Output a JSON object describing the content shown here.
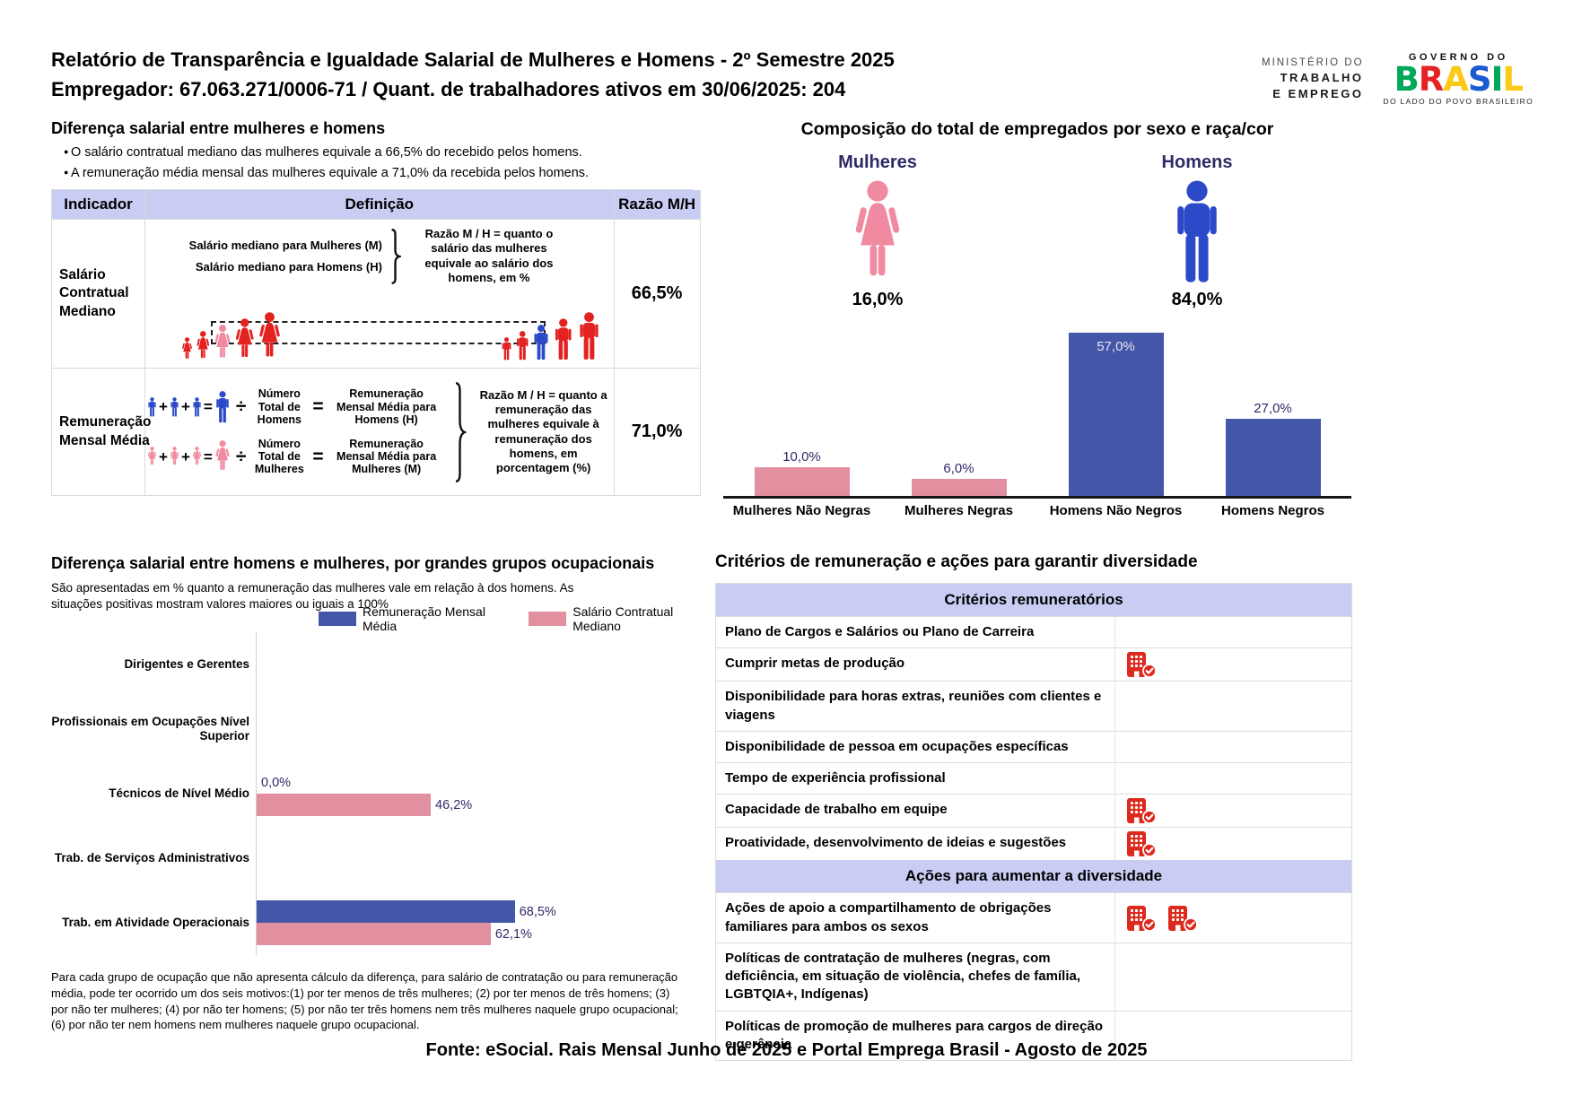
{
  "colors": {
    "figure_red": "#e32222",
    "figure_pink": "#f08aa0",
    "figure_blue": "#2b49c8",
    "bar_blue": "#4456a8",
    "bar_pink": "#e2909f",
    "header_bg": "#c9cdf4",
    "navy": "#2e2b66"
  },
  "icons": {
    "criteria_met": "building-check-icon",
    "woman": "woman-figure-icon",
    "man": "man-figure-icon"
  },
  "header": {
    "title_line1": "Relatório de Transparência e Igualdade Salarial de Mulheres e Homens - 2º Semestre 2025",
    "title_line2": "Empregador: 67.063.271/0006-71 / Quant. de trabalhadores ativos em 30/06/2025: 204",
    "ministry": {
      "line1": "MINISTÉRIO DO",
      "line2": "TRABALHO",
      "line3": "E EMPREGO"
    },
    "gov": {
      "top": "GOVERNO DO",
      "letters": [
        "B",
        "R",
        "A",
        "S",
        "I",
        "L"
      ],
      "letter_colors": [
        "#00a859",
        "#e52322",
        "#fcc917",
        "#1b5bd0",
        "#00a859",
        "#fcc917"
      ],
      "bottom": "DO LADO DO POVO BRASILEIRO"
    }
  },
  "pay_gap": {
    "section_title": "Diferença salarial entre mulheres e homens",
    "bullets": [
      "O salário contratual mediano das mulheres equivale a 66,5% do recebido pelos homens.",
      "A remuneração média mensal das mulheres equivale a 71,0% da recebida pelos homens."
    ],
    "headers": [
      "Indicador",
      "Definição",
      "Razão M/H"
    ],
    "row1": {
      "indicator": "Salário Contratual Mediano",
      "def_line1": "Salário mediano para Mulheres (M)",
      "def_line2": "Salário mediano para Homens (H)",
      "note": "Razão M / H = quanto o salário das mulheres equivale ao salário dos homens, em %",
      "ratio": "66,5%"
    },
    "row2": {
      "indicator": "Remuneração Mensal Média",
      "divisor_men": "Número\nTotal de\nHomens",
      "result_men": "Remuneração\nMensal Média para\nHomens (H)",
      "divisor_women": "Número\nTotal de\nMulheres",
      "result_women": "Remuneração\nMensal Média para\nMulheres (M)",
      "note": "Razão M / H = quanto a remuneração das mulheres equivale à remuneração dos homens, em porcentagem (%)",
      "ratio": "71,0%"
    }
  },
  "occupational": {
    "subtitle": "São apresentadas em % quanto a remuneração das mulheres vale em relação à dos homens. As situações positivas mostram valores maiores ou iguais a 100%",
    "footnote": "Para cada grupo de ocupação que não apresenta cálculo da diferença, para salário de contratação ou para remuneração média, pode ter ocorrido um dos seis motivos:(1) por ter menos de três mulheres; (2) por ter menos de três homens; (3) por não ter mulheres; (4) por não ter homens; (5) por não ter três homens nem três mulheres naquele grupo ocupacional; (6) por não ter nem homens nem mulheres naquele grupo ocupacional."
  },
  "criteria": {
    "title": "Critérios de remuneração e ações para garantir diversidade",
    "sections": [
      {
        "header": "Critérios remuneratórios",
        "rows": [
          {
            "label": "Plano de Cargos e Salários ou Plano de Carreira",
            "icons": 0
          },
          {
            "label": "Cumprir metas de produção",
            "icons": 1
          },
          {
            "label": "Disponibilidade para horas extras, reuniões com clientes e viagens",
            "icons": 0
          },
          {
            "label": "Disponibilidade de pessoa em ocupações específicas",
            "icons": 0
          },
          {
            "label": "Tempo de experiência profissional",
            "icons": 0
          },
          {
            "label": "Capacidade de trabalho em equipe",
            "icons": 1
          },
          {
            "label": "Proatividade, desenvolvimento de ideias e sugestões",
            "icons": 1
          }
        ]
      },
      {
        "header": "Ações para aumentar a diversidade",
        "rows": [
          {
            "label": "Ações de apoio a compartilhamento de obrigações familiares para ambos os sexos",
            "icons": 2
          },
          {
            "label": "Políticas de contratação de mulheres (negras, com deficiência, em situação de violência, chefes de família, LGBTQIA+, Indígenas)",
            "icons": 0
          },
          {
            "label": "Políticas de promoção de mulheres para cargos de direção e gerência",
            "icons": 0
          }
        ]
      }
    ]
  },
  "chart_data": [
    {
      "type": "bar",
      "title": "Composição do total de empregados por sexo e raça/cor",
      "categories": [
        "Mulheres Não Negras",
        "Mulheres Negras",
        "Homens Não Negros",
        "Homens Negros"
      ],
      "values": [
        10.0,
        6.0,
        57.0,
        27.0
      ],
      "labels": [
        "10,0%",
        "6,0%",
        "57,0%",
        "27,0%"
      ],
      "bar_colors": [
        "pink",
        "pink",
        "blue",
        "blue"
      ],
      "ylim": [
        0,
        60
      ],
      "grid": false,
      "annotations": [
        {
          "label": "Mulheres",
          "value": "16,0%"
        },
        {
          "label": "Homens",
          "value": "84,0%"
        }
      ]
    },
    {
      "type": "bar",
      "orientation": "horizontal",
      "title": "Diferença salarial entre homens e mulheres, por grandes grupos ocupacionais",
      "categories": [
        "Dirigentes e Gerentes",
        "Profissionais em Ocupações Nível Superior",
        "Técnicos de Nível Médio",
        "Trab. de Serviços Administrativos",
        "Trab. em Atividade Operacionais"
      ],
      "series": [
        {
          "name": "Remuneração Mensal Média",
          "color": "blue",
          "values": [
            null,
            null,
            0.0,
            null,
            68.5
          ],
          "labels": [
            null,
            null,
            "0,0%",
            null,
            "68,5%"
          ]
        },
        {
          "name": "Salário Contratual Mediano",
          "color": "pink",
          "values": [
            null,
            null,
            46.2,
            null,
            62.1
          ],
          "labels": [
            null,
            null,
            "46,2%",
            null,
            "62,1%"
          ]
        }
      ],
      "xlim": [
        0,
        100
      ],
      "legend_position": "top"
    }
  ],
  "footer": "Fonte: eSocial. Rais Mensal Junho de 2025 e Portal Emprega Brasil - Agosto de 2025"
}
